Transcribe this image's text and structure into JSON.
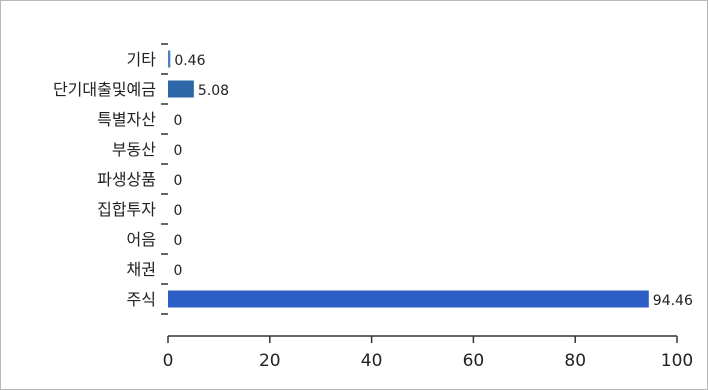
{
  "chart_data": {
    "type": "bar",
    "orientation": "horizontal",
    "title": "",
    "xlabel": "",
    "ylabel": "",
    "categories": [
      "기타",
      "단기대출및예금",
      "특별자산",
      "부동산",
      "파생상품",
      "집합투자",
      "어음",
      "채권",
      "주식"
    ],
    "values": [
      0.46,
      5.08,
      0,
      0,
      0,
      0,
      0,
      0,
      94.46
    ],
    "value_labels": [
      "0.46",
      "5.08",
      "0",
      "0",
      "0",
      "0",
      "0",
      "0",
      "94.46"
    ],
    "xlim": [
      0,
      100
    ],
    "xticks": [
      0,
      20,
      40,
      60,
      80,
      100
    ],
    "xtick_labels": [
      "0",
      "20",
      "40",
      "60",
      "80",
      "100"
    ],
    "grid": false,
    "legend": "none",
    "colors": {
      "bar_light": "#4f7fc4",
      "bar_mid": "#2e67a8",
      "bar_main": "#2c5fc6",
      "axis": "#333333",
      "text": "#222222"
    }
  }
}
